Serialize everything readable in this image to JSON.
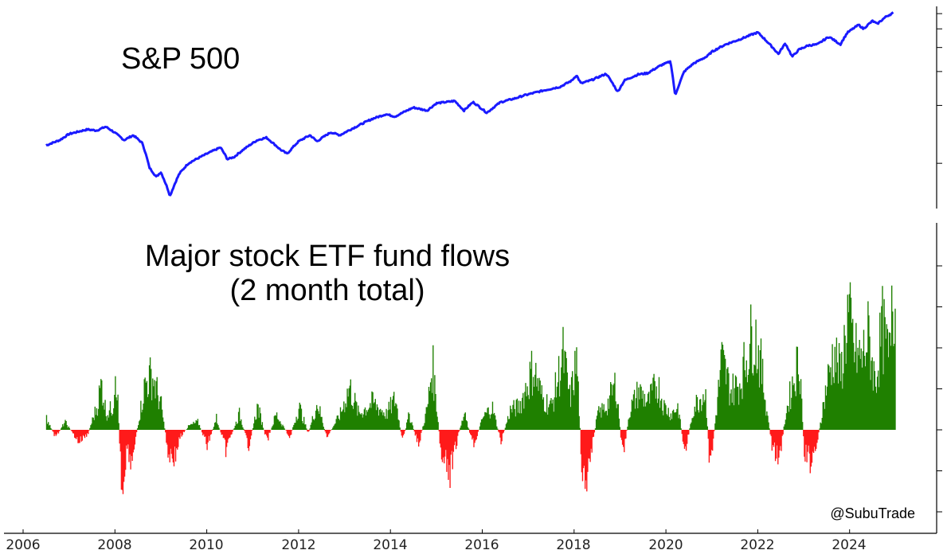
{
  "chart_data": [
    {
      "type": "line",
      "title": "S&P 500",
      "xlabel": "",
      "ylabel": "",
      "y_scale": "log",
      "y_tick_labels_shown": false,
      "xlim": [
        2006.0,
        2025.2
      ],
      "ylim": [
        640,
        6300
      ],
      "series": [
        {
          "name": "",
          "color": "#1a1aff",
          "points": [
            [
              2006.5,
              1240
            ],
            [
              2006.8,
              1320
            ],
            [
              2007.0,
              1420
            ],
            [
              2007.4,
              1500
            ],
            [
              2007.6,
              1480
            ],
            [
              2007.8,
              1550
            ],
            [
              2007.95,
              1470
            ],
            [
              2008.2,
              1320
            ],
            [
              2008.4,
              1400
            ],
            [
              2008.6,
              1270
            ],
            [
              2008.75,
              950
            ],
            [
              2008.9,
              850
            ],
            [
              2009.0,
              900
            ],
            [
              2009.15,
              735
            ],
            [
              2009.2,
              676
            ],
            [
              2009.4,
              880
            ],
            [
              2009.6,
              1000
            ],
            [
              2010.0,
              1120
            ],
            [
              2010.3,
              1210
            ],
            [
              2010.45,
              1050
            ],
            [
              2010.6,
              1080
            ],
            [
              2010.8,
              1180
            ],
            [
              2011.1,
              1320
            ],
            [
              2011.3,
              1360
            ],
            [
              2011.6,
              1180
            ],
            [
              2011.75,
              1120
            ],
            [
              2012.0,
              1300
            ],
            [
              2012.25,
              1400
            ],
            [
              2012.4,
              1300
            ],
            [
              2012.7,
              1450
            ],
            [
              2012.9,
              1400
            ],
            [
              2013.3,
              1570
            ],
            [
              2013.6,
              1700
            ],
            [
              2013.9,
              1800
            ],
            [
              2014.1,
              1750
            ],
            [
              2014.5,
              1950
            ],
            [
              2014.8,
              1880
            ],
            [
              2015.0,
              2050
            ],
            [
              2015.4,
              2110
            ],
            [
              2015.6,
              1880
            ],
            [
              2015.8,
              2080
            ],
            [
              2016.1,
              1830
            ],
            [
              2016.4,
              2080
            ],
            [
              2016.7,
              2170
            ],
            [
              2016.9,
              2250
            ],
            [
              2017.3,
              2380
            ],
            [
              2017.7,
              2500
            ],
            [
              2017.95,
              2690
            ],
            [
              2018.05,
              2870
            ],
            [
              2018.15,
              2600
            ],
            [
              2018.4,
              2720
            ],
            [
              2018.7,
              2920
            ],
            [
              2018.95,
              2350
            ],
            [
              2019.1,
              2700
            ],
            [
              2019.4,
              2900
            ],
            [
              2019.6,
              2940
            ],
            [
              2019.9,
              3240
            ],
            [
              2020.1,
              3380
            ],
            [
              2020.2,
              2240
            ],
            [
              2020.4,
              3000
            ],
            [
              2020.6,
              3300
            ],
            [
              2020.9,
              3600
            ],
            [
              2021.0,
              3800
            ],
            [
              2021.3,
              4150
            ],
            [
              2021.6,
              4400
            ],
            [
              2021.9,
              4700
            ],
            [
              2022.0,
              4790
            ],
            [
              2022.2,
              4300
            ],
            [
              2022.45,
              3700
            ],
            [
              2022.6,
              4200
            ],
            [
              2022.75,
              3580
            ],
            [
              2022.9,
              3900
            ],
            [
              2023.1,
              4100
            ],
            [
              2023.3,
              4150
            ],
            [
              2023.55,
              4550
            ],
            [
              2023.8,
              4150
            ],
            [
              2023.95,
              4770
            ],
            [
              2024.2,
              5250
            ],
            [
              2024.3,
              5000
            ],
            [
              2024.5,
              5500
            ],
            [
              2024.6,
              5300
            ],
            [
              2024.8,
              5800
            ],
            [
              2024.95,
              6050
            ]
          ]
        }
      ]
    },
    {
      "type": "area",
      "title": "Major stock ETF fund flows\n(2 month total)",
      "xlabel": "",
      "ylabel": "",
      "y_tick_labels_shown": false,
      "xlim": [
        2006.0,
        2025.2
      ],
      "ylim": [
        -0.9,
        2.0
      ],
      "x_ticks": [
        "2006",
        "2008",
        "2010",
        "2012",
        "2014",
        "2016",
        "2018",
        "2020",
        "2022",
        "2024"
      ],
      "positive_color": "#1f8000",
      "negative_color": "#ff1a1a",
      "series": [
        {
          "name": "",
          "points": [
            [
              2006.5,
              0.15
            ],
            [
              2006.7,
              -0.1
            ],
            [
              2006.9,
              0.1
            ],
            [
              2007.2,
              -0.15
            ],
            [
              2007.4,
              -0.05
            ],
            [
              2007.6,
              0.3
            ],
            [
              2007.7,
              0.6
            ],
            [
              2007.8,
              0.2
            ],
            [
              2007.95,
              0.3
            ],
            [
              2008.0,
              0.85
            ],
            [
              2008.05,
              0.4
            ],
            [
              2008.1,
              -0.3
            ],
            [
              2008.15,
              -0.75
            ],
            [
              2008.25,
              -0.2
            ],
            [
              2008.35,
              -0.4
            ],
            [
              2008.5,
              0.1
            ],
            [
              2008.65,
              0.6
            ],
            [
              2008.8,
              0.7
            ],
            [
              2009.0,
              0.3
            ],
            [
              2009.15,
              -0.3
            ],
            [
              2009.3,
              -0.35
            ],
            [
              2009.4,
              -0.1
            ],
            [
              2009.6,
              0.05
            ],
            [
              2009.8,
              0.1
            ],
            [
              2010.0,
              -0.2
            ],
            [
              2010.2,
              0.15
            ],
            [
              2010.4,
              -0.25
            ],
            [
              2010.7,
              0.2
            ],
            [
              2010.9,
              -0.2
            ],
            [
              2011.1,
              0.3
            ],
            [
              2011.3,
              -0.15
            ],
            [
              2011.5,
              0.2
            ],
            [
              2011.8,
              -0.1
            ],
            [
              2012.0,
              0.3
            ],
            [
              2012.2,
              -0.05
            ],
            [
              2012.4,
              0.35
            ],
            [
              2012.6,
              -0.1
            ],
            [
              2012.9,
              0.2
            ],
            [
              2013.1,
              0.55
            ],
            [
              2013.3,
              0.2
            ],
            [
              2013.6,
              0.35
            ],
            [
              2013.9,
              0.2
            ],
            [
              2014.1,
              0.4
            ],
            [
              2014.25,
              -0.15
            ],
            [
              2014.4,
              0.2
            ],
            [
              2014.6,
              -0.2
            ],
            [
              2014.8,
              0.3
            ],
            [
              2014.9,
              0.85
            ],
            [
              2015.0,
              0.3
            ],
            [
              2015.1,
              -0.4
            ],
            [
              2015.3,
              -0.55
            ],
            [
              2015.45,
              -0.1
            ],
            [
              2015.6,
              0.2
            ],
            [
              2015.8,
              -0.2
            ],
            [
              2016.0,
              0.15
            ],
            [
              2016.2,
              0.3
            ],
            [
              2016.4,
              -0.15
            ],
            [
              2016.6,
              0.25
            ],
            [
              2016.8,
              0.3
            ],
            [
              2016.95,
              0.55
            ],
            [
              2017.1,
              0.8
            ],
            [
              2017.3,
              0.4
            ],
            [
              2017.5,
              0.3
            ],
            [
              2017.75,
              0.95
            ],
            [
              2017.9,
              0.4
            ],
            [
              2018.05,
              0.9
            ],
            [
              2018.15,
              -0.4
            ],
            [
              2018.25,
              -0.95
            ],
            [
              2018.35,
              -0.3
            ],
            [
              2018.5,
              0.2
            ],
            [
              2018.7,
              0.3
            ],
            [
              2018.9,
              0.6
            ],
            [
              2019.05,
              -0.35
            ],
            [
              2019.2,
              0.25
            ],
            [
              2019.4,
              0.5
            ],
            [
              2019.6,
              0.35
            ],
            [
              2019.8,
              0.6
            ],
            [
              2019.95,
              0.3
            ],
            [
              2020.1,
              0.2
            ],
            [
              2020.25,
              0.3
            ],
            [
              2020.4,
              -0.3
            ],
            [
              2020.6,
              0.3
            ],
            [
              2020.85,
              0.5
            ],
            [
              2020.95,
              -0.5
            ],
            [
              2021.1,
              0.3
            ],
            [
              2021.2,
              0.9
            ],
            [
              2021.4,
              0.5
            ],
            [
              2021.6,
              0.6
            ],
            [
              2021.75,
              0.95
            ],
            [
              2021.9,
              1.3
            ],
            [
              2022.05,
              0.85
            ],
            [
              2022.2,
              0.2
            ],
            [
              2022.3,
              -0.2
            ],
            [
              2022.45,
              -0.4
            ],
            [
              2022.6,
              0.2
            ],
            [
              2022.75,
              0.6
            ],
            [
              2022.9,
              0.95
            ],
            [
              2023.0,
              -0.3
            ],
            [
              2023.15,
              -0.4
            ],
            [
              2023.3,
              -0.1
            ],
            [
              2023.5,
              0.6
            ],
            [
              2023.65,
              1.0
            ],
            [
              2023.8,
              0.7
            ],
            [
              2023.95,
              1.5
            ],
            [
              2024.1,
              1.0
            ],
            [
              2024.25,
              0.9
            ],
            [
              2024.4,
              1.2
            ],
            [
              2024.55,
              0.6
            ],
            [
              2024.7,
              1.3
            ],
            [
              2024.85,
              0.9
            ],
            [
              2024.92,
              2.05
            ],
            [
              2024.97,
              1.6
            ],
            [
              2025.0,
              1.75
            ]
          ]
        }
      ]
    }
  ],
  "watermark": "@SubuTrade",
  "ticks": {
    "t0": "2006",
    "t1": "2008",
    "t2": "2010",
    "t3": "2012",
    "t4": "2014",
    "t5": "2016",
    "t6": "2018",
    "t7": "2020",
    "t8": "2022",
    "t9": "2024"
  },
  "titles": {
    "top": "S&P 500",
    "bottom_line1": "Major stock ETF fund flows",
    "bottom_line2": "(2 month total)"
  }
}
